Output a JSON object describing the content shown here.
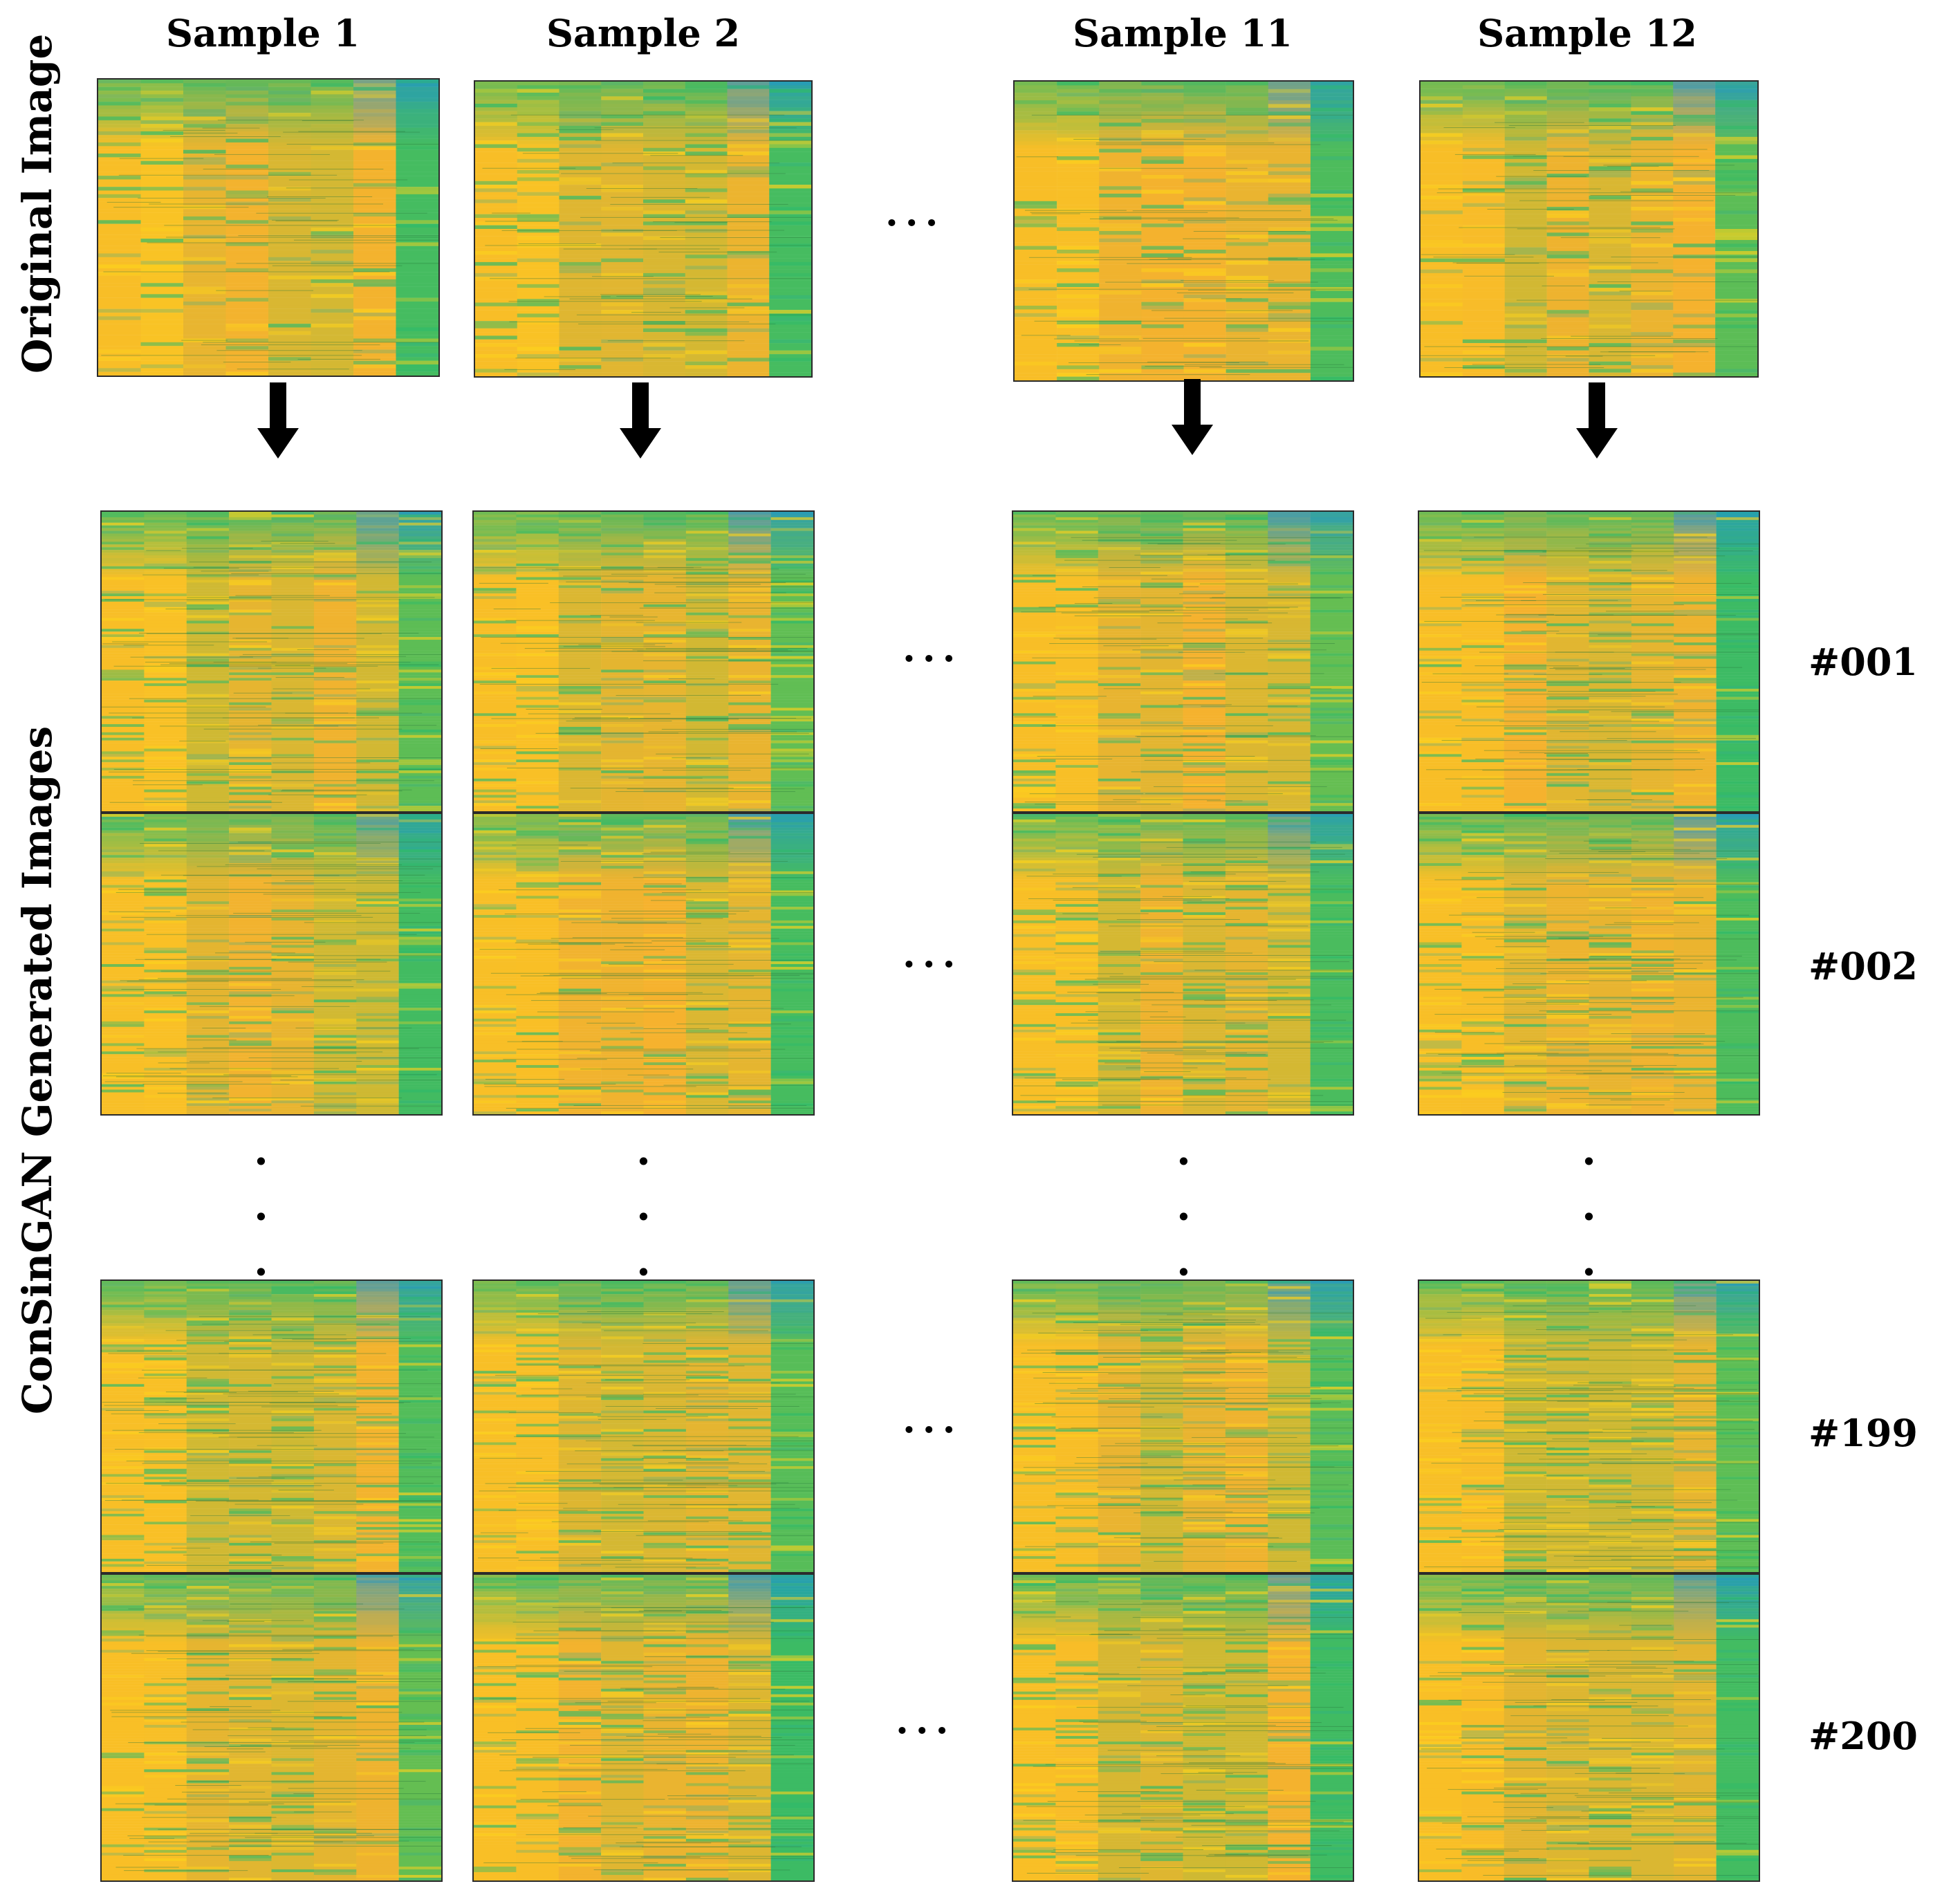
{
  "figure": {
    "side_labels": {
      "original": "Original Image",
      "generated": "ConSinGAN Generated Images"
    },
    "columns": [
      {
        "header": "Sample 1"
      },
      {
        "header": "Sample 2"
      },
      {
        "header": "Sample 11"
      },
      {
        "header": "Sample 12"
      }
    ],
    "generated_rows": [
      {
        "label": "#001"
      },
      {
        "label": "#002"
      },
      {
        "label": "#199"
      },
      {
        "label": "#200"
      }
    ],
    "ellipsis": "···",
    "vertical_ellipsis": "·",
    "colors": {
      "yellow": "#fcd21c",
      "amber": "#f6b22e",
      "olive_green": "#9cc23a",
      "green": "#2eba6a",
      "teal": "#1faa9a",
      "blue": "#2196c6",
      "arrow": "#000000"
    }
  }
}
